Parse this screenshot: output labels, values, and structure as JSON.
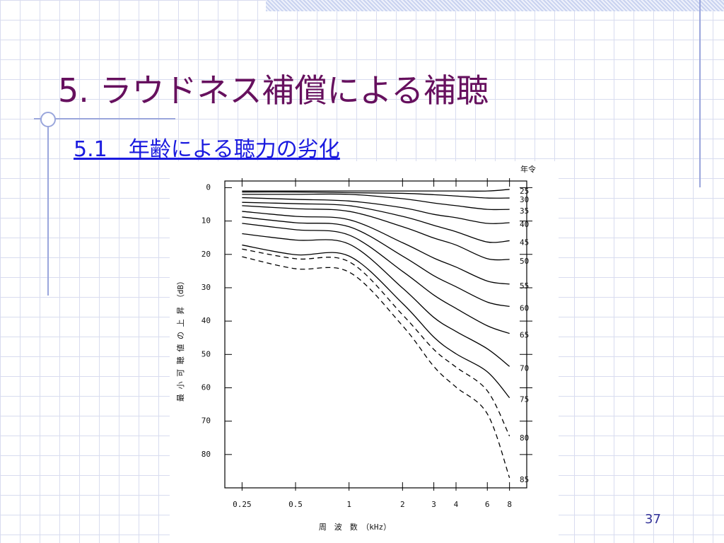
{
  "slide": {
    "title": "5. ラウドネス補償による補聴",
    "subtitle": "5.1　年齢による聴力の劣化",
    "page_number": 37
  },
  "chart_data": {
    "type": "line",
    "x_label": "周　波　数　（kHz）",
    "y_label": "最 小 可 聴 値 の 上 昇 （dB）",
    "legend_title": "年令",
    "x": [
      0.25,
      0.5,
      1,
      2,
      3,
      4,
      6,
      8
    ],
    "x_log": true,
    "xlim": [
      0.2,
      10
    ],
    "xticks": [
      0.25,
      0.5,
      1,
      2,
      3,
      4,
      6,
      8
    ],
    "ylim": [
      -2,
      90
    ],
    "yticks": [
      0,
      10,
      20,
      30,
      40,
      50,
      60,
      70,
      80
    ],
    "y_inverted": true,
    "series": [
      {
        "name": "25",
        "color": "#000000",
        "dashed": false,
        "values": [
          1,
          1,
          1,
          1,
          1,
          1,
          1,
          0.5
        ]
      },
      {
        "name": "30",
        "color": "#000000",
        "dashed": false,
        "values": [
          1.3,
          1.3,
          1.5,
          1.7,
          2.1,
          2.5,
          3.1,
          3.1
        ]
      },
      {
        "name": "35",
        "color": "#000000",
        "dashed": false,
        "values": [
          2,
          2,
          2,
          3.3,
          4.6,
          5.4,
          6.5,
          6.5
        ]
      },
      {
        "name": "40",
        "color": "#000000",
        "dashed": false,
        "values": [
          3,
          3.5,
          4,
          6,
          8,
          9,
          10.7,
          10.5
        ]
      },
      {
        "name": "45",
        "color": "#000000",
        "dashed": false,
        "values": [
          4.4,
          4.8,
          5.4,
          8.6,
          11.3,
          13.2,
          16.3,
          15.9
        ]
      },
      {
        "name": "50",
        "color": "#000000",
        "dashed": false,
        "values": [
          5.4,
          6.3,
          7.1,
          11.7,
          15.1,
          17.2,
          21.3,
          21.5
        ]
      },
      {
        "name": "55",
        "color": "#000000",
        "dashed": false,
        "values": [
          7.1,
          8.6,
          9.6,
          16.5,
          21.1,
          23.8,
          28,
          28.9
        ]
      },
      {
        "name": "60",
        "color": "#000000",
        "dashed": false,
        "values": [
          8.8,
          10.5,
          11.7,
          20.5,
          26.4,
          29.7,
          34.3,
          35.6
        ]
      },
      {
        "name": "65",
        "color": "#000000",
        "dashed": false,
        "values": [
          10.7,
          12.6,
          14.2,
          25.1,
          32.2,
          36.2,
          41.4,
          43.7
        ]
      },
      {
        "name": "70",
        "color": "#000000",
        "dashed": false,
        "values": [
          13.8,
          15.7,
          16.9,
          30.1,
          38.9,
          43.1,
          48.3,
          53.6
        ]
      },
      {
        "name": "75",
        "color": "#000000",
        "dashed": false,
        "values": [
          17.2,
          20.1,
          20.5,
          34.7,
          44.8,
          49.8,
          55.2,
          63
        ]
      },
      {
        "name": "80",
        "color": "#000000",
        "dashed": true,
        "values": [
          18.4,
          21.3,
          22.2,
          38.1,
          48.5,
          53.8,
          60.9,
          74.5
        ]
      },
      {
        "name": "85",
        "color": "#000000",
        "dashed": true,
        "values": [
          20.7,
          24.3,
          25.3,
          41.4,
          53.6,
          59.8,
          67.8,
          87
        ]
      }
    ]
  }
}
